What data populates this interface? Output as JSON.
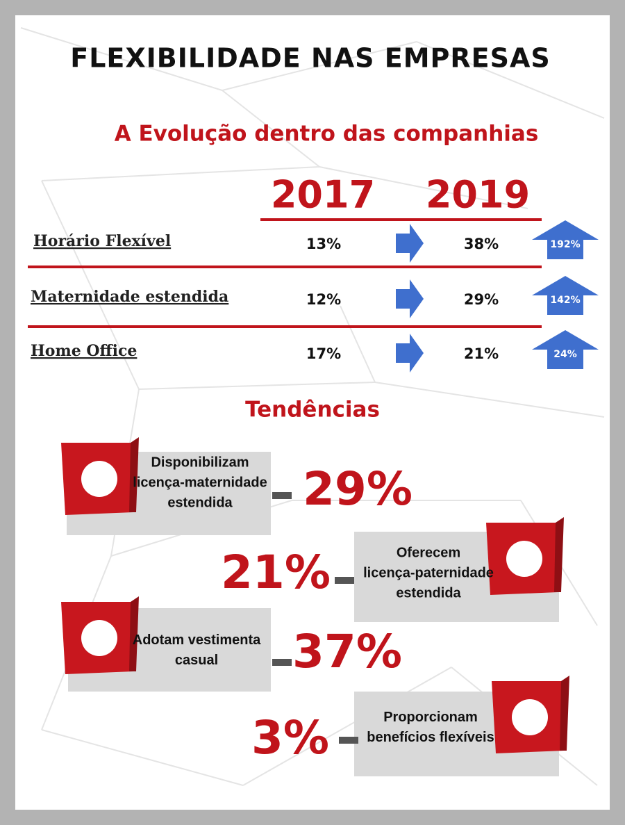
{
  "header": {
    "title": "FLEXIBILIDADE NAS EMPRESAS",
    "subtitle": "A Evolução dentro das companhias"
  },
  "table": {
    "columns": [
      "2017",
      "2019"
    ],
    "rows": [
      {
        "label": "Horário Flexível",
        "v2017": "13%",
        "v2019": "38%",
        "growth": "192%"
      },
      {
        "label": "Maternidade estendida",
        "v2017": "12%",
        "v2019": "29%",
        "growth": "142%"
      },
      {
        "label": "Home Office",
        "v2017": "17%",
        "v2019": "21%",
        "growth": "24%"
      }
    ]
  },
  "trends": {
    "title": "Tendências",
    "items": [
      {
        "lines": [
          "Disponibilizam",
          "licença-maternidade",
          "estendida"
        ],
        "value": "29%"
      },
      {
        "lines": [
          "Oferecem",
          "licença-paternidade",
          "estendida"
        ],
        "value": "21%"
      },
      {
        "lines": [
          "Adotam vestimenta",
          "casual"
        ],
        "value": "37%"
      },
      {
        "lines": [
          "Proporcionam",
          "benefícios flexíveis"
        ],
        "value": "3%"
      }
    ]
  }
}
